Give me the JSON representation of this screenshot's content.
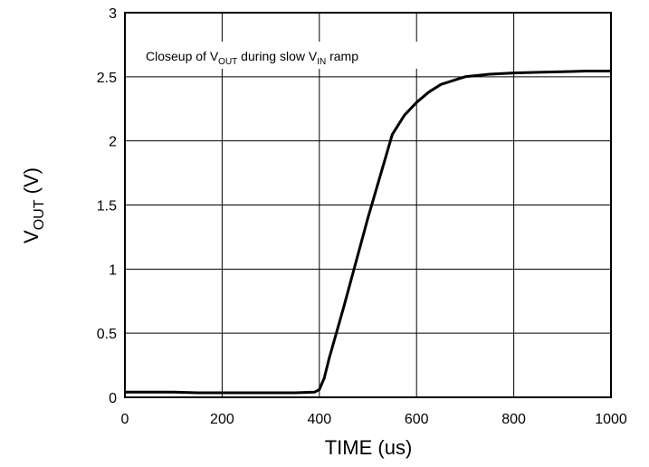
{
  "chart_data": {
    "type": "line",
    "title": "",
    "annotation": {
      "prefix": "Closeup of  V",
      "sub1": "OUT",
      "middle": " during slow V",
      "sub2": "IN",
      "suffix": " ramp"
    },
    "xlabel": "TIME  (us)",
    "ylabel": {
      "main": "V",
      "sub": "OUT",
      "unit": " (V)"
    },
    "xlim": [
      0,
      1000
    ],
    "ylim": [
      0,
      3
    ],
    "xticks": [
      0,
      200,
      400,
      600,
      800,
      1000
    ],
    "yticks": [
      0,
      0.5,
      1,
      1.5,
      2,
      2.5,
      3
    ],
    "grid": true,
    "series": [
      {
        "x": [
          0,
          50,
          100,
          150,
          200,
          250,
          300,
          350,
          390,
          400,
          410,
          420,
          450,
          500,
          550,
          575,
          600,
          625,
          650,
          700,
          750,
          800,
          850,
          900,
          950,
          1000
        ],
        "y": [
          0.04,
          0.04,
          0.04,
          0.035,
          0.035,
          0.035,
          0.035,
          0.035,
          0.04,
          0.06,
          0.15,
          0.3,
          0.7,
          1.4,
          2.05,
          2.2,
          2.3,
          2.38,
          2.44,
          2.5,
          2.52,
          2.53,
          2.535,
          2.54,
          2.545,
          2.545
        ]
      }
    ]
  }
}
